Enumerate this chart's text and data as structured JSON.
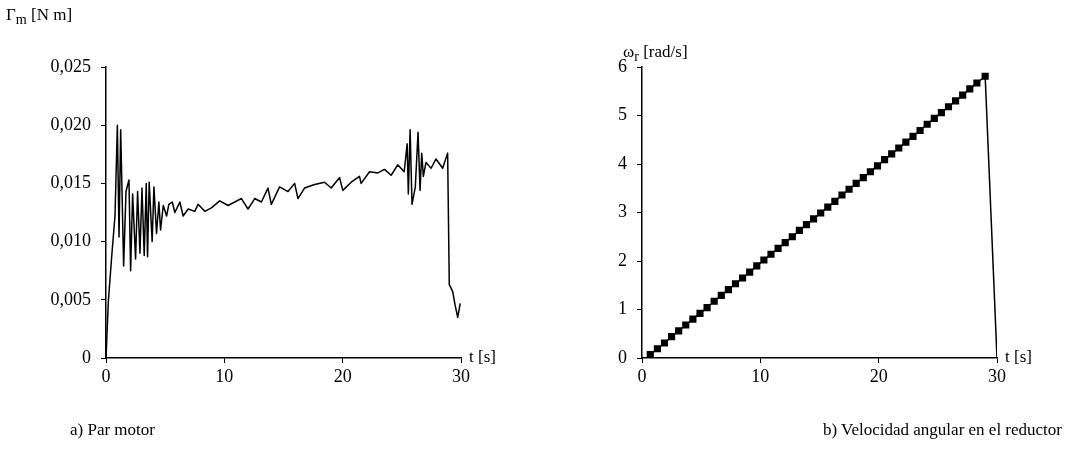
{
  "chart_data": [
    {
      "type": "line",
      "title": "a) Par motor",
      "xlabel": "t [s]",
      "ylabel": "Γ$_{m}$ [N m]",
      "xlim": [
        0,
        30
      ],
      "xticks": [
        0,
        10,
        20,
        30
      ],
      "ylim": [
        0,
        0.025
      ],
      "yticks": [
        {
          "value": 0,
          "label": "0"
        },
        {
          "value": 0.005,
          "label": "0,005"
        },
        {
          "value": 0.01,
          "label": "0,010"
        },
        {
          "value": 0.015,
          "label": "0,015"
        },
        {
          "value": 0.02,
          "label": "0,020"
        },
        {
          "value": 0.025,
          "label": "0,025"
        }
      ],
      "grid": false,
      "legend": false,
      "marker": "none",
      "series": [
        {
          "color": "#000000",
          "x": [
            0,
            0.2,
            0.48,
            0.76,
            0.96,
            1.1,
            1.24,
            1.49,
            1.69,
            1.94,
            2.08,
            2.25,
            2.5,
            2.67,
            2.87,
            3.04,
            3.23,
            3.4,
            3.51,
            3.65,
            3.9,
            4.05,
            4.27,
            4.47,
            4.61,
            4.84,
            5.12,
            5.31,
            5.6,
            5.82,
            6.24,
            6.52,
            6.94,
            7.5,
            7.78,
            8.35,
            8.91,
            9.61,
            10.32,
            10.88,
            11.44,
            12.0,
            12.57,
            13.13,
            13.69,
            13.97,
            14.67,
            15.38,
            15.94,
            16.22,
            16.78,
            17.63,
            18.47,
            19.03,
            19.74,
            20.01,
            20.72,
            21.42,
            21.56,
            22.27,
            22.97,
            23.53,
            24.1,
            24.65,
            25.2,
            25.45,
            25.55,
            25.7,
            25.86,
            26.14,
            26.37,
            26.54,
            26.68,
            26.82,
            27.04,
            27.47,
            27.89,
            28.45,
            28.87,
            29.01,
            29.3,
            29.49,
            29.72,
            29.94
          ],
          "values": [
            0,
            0.0049,
            0.0087,
            0.0122,
            0.02,
            0.0104,
            0.0196,
            0.0079,
            0.0143,
            0.0153,
            0.0075,
            0.0141,
            0.0085,
            0.0143,
            0.009,
            0.0146,
            0.0088,
            0.015,
            0.0087,
            0.0151,
            0.01,
            0.0147,
            0.0107,
            0.0134,
            0.011,
            0.0131,
            0.0122,
            0.0132,
            0.0134,
            0.0125,
            0.0134,
            0.0122,
            0.0128,
            0.0126,
            0.0132,
            0.0126,
            0.0129,
            0.0135,
            0.0131,
            0.0134,
            0.0137,
            0.0128,
            0.0137,
            0.0134,
            0.0146,
            0.0132,
            0.0147,
            0.0143,
            0.015,
            0.0137,
            0.0146,
            0.0149,
            0.0151,
            0.0146,
            0.0155,
            0.0144,
            0.0151,
            0.0156,
            0.015,
            0.016,
            0.0159,
            0.0162,
            0.0157,
            0.0166,
            0.016,
            0.0184,
            0.0141,
            0.0196,
            0.0132,
            0.0147,
            0.0194,
            0.0144,
            0.0176,
            0.0156,
            0.0168,
            0.0163,
            0.0171,
            0.0163,
            0.0176,
            0.0063,
            0.0057,
            0.0046,
            0.0035,
            0.0047
          ]
        }
      ]
    },
    {
      "type": "line",
      "title": "b) Velocidad angular en el reductor",
      "xlabel": "t [s]",
      "ylabel": "ω$_{r}$ [rad/s]",
      "xlim": [
        0,
        30
      ],
      "xticks": [
        0,
        10,
        20,
        30
      ],
      "ylim": [
        0,
        6
      ],
      "yticks": [
        0,
        1,
        2,
        3,
        4,
        5,
        6
      ],
      "grid": false,
      "legend": false,
      "marker": "square",
      "series": [
        {
          "color": "#000000",
          "x": [
            0.7,
            1.3,
            1.9,
            2.5,
            3.1,
            3.7,
            4.3,
            4.9,
            5.5,
            6.1,
            6.7,
            7.3,
            7.9,
            8.5,
            9.1,
            9.7,
            10.3,
            10.9,
            11.5,
            12.1,
            12.7,
            13.3,
            13.9,
            14.5,
            15.1,
            15.7,
            16.3,
            16.9,
            17.5,
            18.1,
            18.7,
            19.3,
            19.9,
            20.5,
            21.1,
            21.7,
            22.3,
            22.9,
            23.5,
            24.1,
            24.7,
            25.3,
            25.9,
            26.5,
            27.1,
            27.7,
            28.3,
            29.0
          ],
          "values": [
            0.07,
            0.19,
            0.31,
            0.44,
            0.56,
            0.68,
            0.8,
            0.92,
            1.04,
            1.17,
            1.29,
            1.41,
            1.53,
            1.65,
            1.77,
            1.9,
            2.02,
            2.14,
            2.26,
            2.38,
            2.5,
            2.63,
            2.75,
            2.87,
            2.99,
            3.11,
            3.23,
            3.36,
            3.48,
            3.6,
            3.72,
            3.84,
            3.96,
            4.09,
            4.21,
            4.33,
            4.45,
            4.57,
            4.69,
            4.82,
            4.94,
            5.06,
            5.18,
            5.3,
            5.42,
            5.55,
            5.67,
            5.81
          ]
        },
        {
          "color": "#000000",
          "marker": "none",
          "x": [
            29.0,
            30
          ],
          "values": [
            5.81,
            0
          ]
        }
      ]
    }
  ]
}
